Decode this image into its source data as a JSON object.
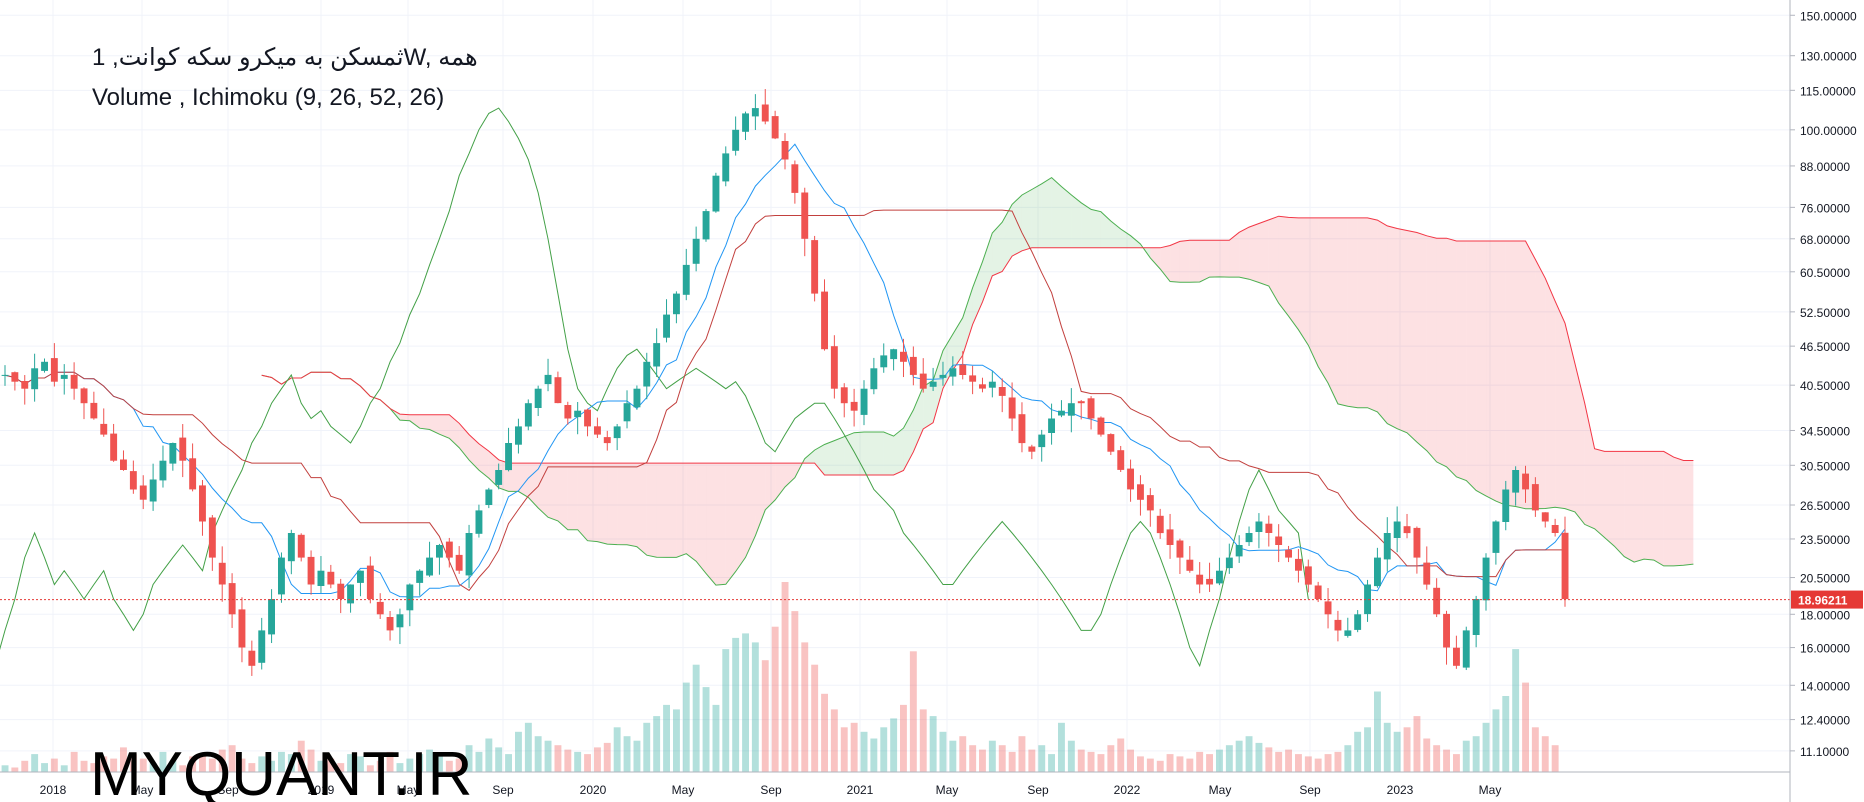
{
  "chart_data": {
    "type": "candlestick",
    "title": "ثمسکن به میکرو سکه کوانت, 1W, همه",
    "subtitle": "Volume , Ichimoku (9, 26, 52, 26)",
    "watermark": "MYQUANT.IR",
    "price_scale": "log",
    "y_ticks": [
      "150.00000",
      "130.00000",
      "115.00000",
      "100.00000",
      "88.00000",
      "76.00000",
      "68.00000",
      "60.50000",
      "52.50000",
      "46.50000",
      "40.50000",
      "34.50000",
      "30.50000",
      "26.50000",
      "23.50000",
      "20.50000",
      "18.00000",
      "16.00000",
      "14.00000",
      "12.40000",
      "11.10000"
    ],
    "x_ticks": [
      "2018",
      "May",
      "Sep",
      "2019",
      "May",
      "Sep",
      "2020",
      "May",
      "Sep",
      "2021",
      "May",
      "Sep",
      "2022",
      "May",
      "Sep",
      "2023",
      "May"
    ],
    "last_price_label": "18.96211",
    "last_price": 18.96211,
    "ylim": [
      10.3,
      155
    ],
    "price_path": [
      42,
      41,
      40,
      43,
      44,
      41,
      42,
      40,
      38,
      36,
      34,
      31,
      30,
      28,
      27,
      29,
      31,
      33,
      31,
      28,
      25,
      22,
      20,
      18,
      16,
      15,
      17,
      19,
      22,
      24,
      22,
      20,
      21,
      20,
      19,
      20,
      21,
      19,
      18,
      17,
      18,
      20,
      21,
      22,
      23,
      22,
      21,
      24,
      26,
      28,
      30,
      33,
      35,
      38,
      40,
      42,
      38,
      36,
      37,
      35,
      34,
      33,
      35,
      38,
      40,
      44,
      47,
      52,
      56,
      62,
      68,
      75,
      85,
      92,
      100,
      106,
      108,
      103,
      97,
      90,
      80,
      68,
      56,
      46,
      40,
      38,
      37,
      40,
      43,
      45,
      46,
      44,
      42,
      40,
      41,
      42,
      43,
      42,
      41,
      40,
      41,
      39,
      36,
      33,
      32,
      34,
      36,
      37,
      38,
      38,
      36,
      34,
      32,
      30,
      28,
      27,
      26,
      24,
      23,
      22,
      21,
      20,
      20,
      21,
      22,
      23,
      24,
      25,
      24,
      23,
      22,
      21,
      20,
      19,
      18,
      17,
      17,
      18,
      20,
      22,
      24,
      25,
      24,
      22,
      20,
      18,
      16,
      15,
      17,
      19,
      22,
      25,
      28,
      30,
      28,
      26,
      25,
      24,
      19
    ],
    "volume": [
      3,
      2,
      5,
      8,
      4,
      6,
      3,
      9,
      5,
      4,
      7,
      6,
      11,
      8,
      6,
      4,
      9,
      5,
      3,
      7,
      8,
      6,
      10,
      12,
      6,
      4,
      7,
      5,
      9,
      8,
      14,
      10,
      5,
      6,
      4,
      8,
      7,
      3,
      5,
      9,
      4,
      6,
      8,
      10,
      7,
      5,
      6,
      12,
      9,
      15,
      11,
      8,
      18,
      22,
      16,
      14,
      12,
      10,
      9,
      8,
      11,
      13,
      20,
      16,
      14,
      22,
      25,
      30,
      28,
      40,
      48,
      38,
      30,
      55,
      60,
      62,
      58,
      50,
      65,
      85,
      72,
      58,
      48,
      35,
      28,
      20,
      22,
      18,
      15,
      20,
      24,
      30,
      54,
      28,
      25,
      18,
      14,
      16,
      12,
      10,
      14,
      12,
      9,
      16,
      10,
      12,
      8,
      22,
      14,
      10,
      9,
      8,
      12,
      15,
      10,
      7,
      6,
      5,
      8,
      7,
      6,
      9,
      8,
      10,
      12,
      14,
      16,
      13,
      11,
      9,
      10,
      8,
      7,
      6,
      8,
      9,
      12,
      18,
      20,
      36,
      22,
      18,
      20,
      25,
      15,
      12,
      10,
      8,
      14,
      16,
      22,
      28,
      34,
      55,
      40,
      20,
      16,
      12
    ],
    "ichimoku": {
      "tenkan_sen_color": "#2196f3",
      "kijun_sen_color": "#c2403e",
      "chikou_span_color": "#43a047",
      "senkou_a_color": "#4caf50",
      "senkou_b_color": "#f23645",
      "cloud_bull_color": "#4caf50",
      "cloud_bear_color": "#f23645"
    },
    "colors": {
      "up": "#26a69a",
      "down": "#ef5350",
      "last_price": "#e53935"
    }
  }
}
